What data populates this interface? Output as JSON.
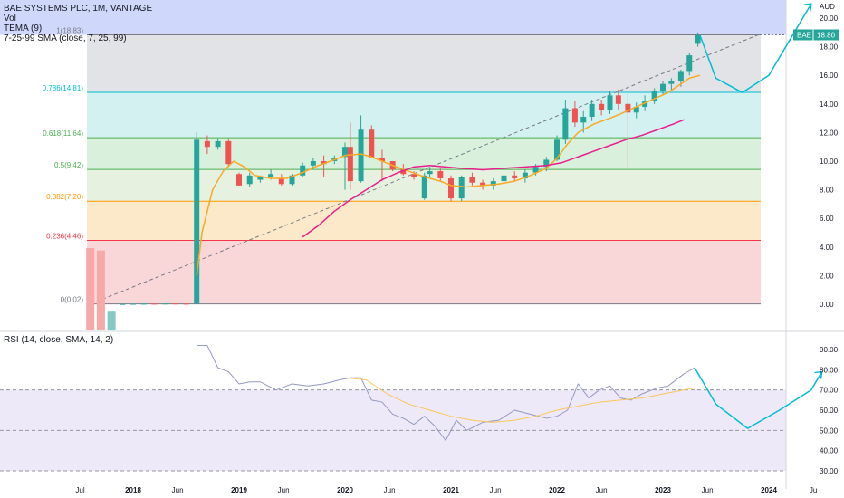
{
  "header": {
    "title": "BAE SYSTEMS PLC, 1M, VANTAGE",
    "vol_label": "Vol",
    "tema_label": "TEMA (9)",
    "sma_label": "7-25-99 SMA (close, 7, 25, 99)"
  },
  "price_axis": {
    "currency": "AUD",
    "ticks": [
      "20.00",
      "18.00",
      "16.00",
      "14.00",
      "12.00",
      "10.00",
      "8.00",
      "6.00",
      "4.00",
      "2.00",
      "0.00"
    ]
  },
  "rsi_panel": {
    "label": "RSI (14, close, SMA, 14, 2)",
    "ticks": [
      "90.00",
      "80.00",
      "70.00",
      "60.00",
      "50.00",
      "40.00",
      "30.00"
    ]
  },
  "time_axis": [
    "Jul",
    "2018",
    "Jun",
    "2019",
    "Jun",
    "2020",
    "Jun",
    "2021",
    "Jun",
    "2022",
    "Jun",
    "2023",
    "Jun",
    "2024",
    "Ju"
  ],
  "symbol_badge": {
    "symbol": "BAE",
    "price": "18.80"
  },
  "fib_levels": [
    {
      "label": "1(18.83)",
      "value": 18.83,
      "color": "#787b86"
    },
    {
      "label": "0.786(14.81)",
      "value": 14.81,
      "color": "#00bcd4"
    },
    {
      "label": "0.618(11.64)",
      "value": 11.64,
      "color": "#4caf50"
    },
    {
      "label": "0.5(9.42)",
      "value": 9.42,
      "color": "#4caf50"
    },
    {
      "label": "0.382(7.20)",
      "value": 7.2,
      "color": "#ff9800"
    },
    {
      "label": "0.236(4.46)",
      "value": 4.46,
      "color": "#f23645"
    },
    {
      "label": "0(0.02)",
      "value": 0.02,
      "color": "#787b86"
    }
  ],
  "colors": {
    "up": "#26a69a",
    "down": "#ef5350",
    "tema": "#f9a825",
    "sma": "#e91e8c",
    "projection": "#00bcd4",
    "rsi": "#9598c2",
    "rsi_sma": "#f9c75a"
  },
  "chart_data": {
    "type": "candlestick",
    "title": "BAE SYSTEMS PLC, 1M, VANTAGE",
    "ylim": [
      -1.5,
      21
    ],
    "rsi_ylim": [
      25,
      95
    ],
    "candles": [
      {
        "t": 2017.9,
        "o": 0.02,
        "h": 0.03,
        "l": 0.01,
        "c": 0.02
      },
      {
        "t": 2018.0,
        "o": 0.02,
        "h": 0.04,
        "l": 0.01,
        "c": 0.03
      },
      {
        "t": 2018.1,
        "o": 0.03,
        "h": 0.05,
        "l": 0.02,
        "c": 0.04
      },
      {
        "t": 2018.2,
        "o": 0.04,
        "h": 0.05,
        "l": 0.02,
        "c": 0.03
      },
      {
        "t": 2018.3,
        "o": 0.03,
        "h": 0.06,
        "l": 0.02,
        "c": 0.05
      },
      {
        "t": 2018.4,
        "o": 0.05,
        "h": 0.06,
        "l": 0.03,
        "c": 0.04
      },
      {
        "t": 2018.5,
        "o": 0.04,
        "h": 0.05,
        "l": 0.02,
        "c": 0.03
      },
      {
        "t": 2018.6,
        "o": 0.03,
        "h": 12.0,
        "l": 0.02,
        "c": 11.5
      },
      {
        "t": 2018.7,
        "o": 11.4,
        "h": 11.8,
        "l": 10.5,
        "c": 11.0
      },
      {
        "t": 2018.8,
        "o": 11.0,
        "h": 11.6,
        "l": 10.8,
        "c": 11.4
      },
      {
        "t": 2018.9,
        "o": 11.4,
        "h": 11.6,
        "l": 9.6,
        "c": 9.8
      },
      {
        "t": 2019.0,
        "o": 9.1,
        "h": 9.2,
        "l": 8.3,
        "c": 8.3
      },
      {
        "t": 2019.1,
        "o": 8.4,
        "h": 9.2,
        "l": 8.2,
        "c": 9.0
      },
      {
        "t": 2019.2,
        "o": 8.7,
        "h": 9.0,
        "l": 8.5,
        "c": 8.9
      },
      {
        "t": 2019.3,
        "o": 8.9,
        "h": 9.4,
        "l": 8.7,
        "c": 9.1
      },
      {
        "t": 2019.4,
        "o": 8.8,
        "h": 9.1,
        "l": 8.3,
        "c": 8.4
      },
      {
        "t": 2019.5,
        "o": 8.4,
        "h": 9.1,
        "l": 8.3,
        "c": 9.0
      },
      {
        "t": 2019.6,
        "o": 9.0,
        "h": 9.9,
        "l": 8.9,
        "c": 9.7
      },
      {
        "t": 2019.7,
        "o": 9.7,
        "h": 10.2,
        "l": 9.4,
        "c": 10.0
      },
      {
        "t": 2019.8,
        "o": 10.0,
        "h": 10.4,
        "l": 8.9,
        "c": 9.8
      },
      {
        "t": 2019.9,
        "o": 10.0,
        "h": 10.4,
        "l": 9.8,
        "c": 10.2
      },
      {
        "t": 2020.0,
        "o": 10.3,
        "h": 11.3,
        "l": 8.0,
        "c": 11.0
      },
      {
        "t": 2020.05,
        "o": 11.0,
        "h": 12.7,
        "l": 8.0,
        "c": 8.6
      },
      {
        "t": 2020.15,
        "o": 8.6,
        "h": 13.2,
        "l": 8.5,
        "c": 12.2
      },
      {
        "t": 2020.25,
        "o": 12.2,
        "h": 12.5,
        "l": 10.2,
        "c": 10.2
      },
      {
        "t": 2020.35,
        "o": 10.2,
        "h": 10.8,
        "l": 8.6,
        "c": 10.0
      },
      {
        "t": 2020.45,
        "o": 10.0,
        "h": 10.0,
        "l": 9.3,
        "c": 9.4
      },
      {
        "t": 2020.55,
        "o": 9.4,
        "h": 9.8,
        "l": 9.0,
        "c": 9.1
      },
      {
        "t": 2020.65,
        "o": 9.1,
        "h": 9.3,
        "l": 8.7,
        "c": 8.9
      },
      {
        "t": 2020.75,
        "o": 7.4,
        "h": 9.2,
        "l": 7.3,
        "c": 9.0
      },
      {
        "t": 2020.8,
        "o": 9.1,
        "h": 9.6,
        "l": 8.9,
        "c": 9.3
      },
      {
        "t": 2020.9,
        "o": 9.3,
        "h": 9.5,
        "l": 8.6,
        "c": 8.8
      },
      {
        "t": 2021.0,
        "o": 8.8,
        "h": 9.0,
        "l": 7.2,
        "c": 7.4
      },
      {
        "t": 2021.1,
        "o": 7.4,
        "h": 9.0,
        "l": 7.2,
        "c": 8.9
      },
      {
        "t": 2021.2,
        "o": 8.9,
        "h": 9.2,
        "l": 8.3,
        "c": 8.5
      },
      {
        "t": 2021.3,
        "o": 8.5,
        "h": 8.7,
        "l": 8.0,
        "c": 8.3
      },
      {
        "t": 2021.4,
        "o": 8.3,
        "h": 8.8,
        "l": 8.0,
        "c": 8.6
      },
      {
        "t": 2021.5,
        "o": 8.6,
        "h": 9.2,
        "l": 8.3,
        "c": 9.0
      },
      {
        "t": 2021.6,
        "o": 9.0,
        "h": 9.3,
        "l": 8.6,
        "c": 8.8
      },
      {
        "t": 2021.7,
        "o": 8.8,
        "h": 9.4,
        "l": 8.5,
        "c": 9.2
      },
      {
        "t": 2021.8,
        "o": 9.2,
        "h": 9.8,
        "l": 9.0,
        "c": 9.6
      },
      {
        "t": 2021.9,
        "o": 9.6,
        "h": 10.3,
        "l": 9.3,
        "c": 10.1
      },
      {
        "t": 2022.0,
        "o": 10.1,
        "h": 11.8,
        "l": 10.0,
        "c": 11.5
      },
      {
        "t": 2022.08,
        "o": 11.5,
        "h": 14.3,
        "l": 11.2,
        "c": 13.7
      },
      {
        "t": 2022.17,
        "o": 13.7,
        "h": 14.2,
        "l": 12.4,
        "c": 12.7
      },
      {
        "t": 2022.25,
        "o": 12.7,
        "h": 13.5,
        "l": 12.0,
        "c": 13.1
      },
      {
        "t": 2022.33,
        "o": 13.1,
        "h": 14.3,
        "l": 12.8,
        "c": 14.0
      },
      {
        "t": 2022.42,
        "o": 14.0,
        "h": 14.3,
        "l": 13.2,
        "c": 13.6
      },
      {
        "t": 2022.5,
        "o": 13.6,
        "h": 14.9,
        "l": 13.3,
        "c": 14.6
      },
      {
        "t": 2022.58,
        "o": 14.6,
        "h": 15.0,
        "l": 13.6,
        "c": 14.0
      },
      {
        "t": 2022.67,
        "o": 14.0,
        "h": 14.7,
        "l": 9.6,
        "c": 13.4
      },
      {
        "t": 2022.75,
        "o": 13.4,
        "h": 14.1,
        "l": 13.0,
        "c": 13.8
      },
      {
        "t": 2022.83,
        "o": 13.8,
        "h": 14.6,
        "l": 13.5,
        "c": 14.2
      },
      {
        "t": 2022.92,
        "o": 14.2,
        "h": 15.1,
        "l": 14.0,
        "c": 14.9
      },
      {
        "t": 2023.0,
        "o": 14.9,
        "h": 15.6,
        "l": 14.6,
        "c": 15.4
      },
      {
        "t": 2023.08,
        "o": 15.4,
        "h": 15.8,
        "l": 15.0,
        "c": 15.6
      },
      {
        "t": 2023.17,
        "o": 15.6,
        "h": 16.4,
        "l": 15.2,
        "c": 16.3
      },
      {
        "t": 2023.25,
        "o": 16.3,
        "h": 17.6,
        "l": 16.0,
        "c": 17.4
      },
      {
        "t": 2023.33,
        "o": 18.2,
        "h": 19.0,
        "l": 18.0,
        "c": 18.8
      }
    ],
    "tema": [
      [
        2018.6,
        2.0
      ],
      [
        2018.65,
        5.0
      ],
      [
        2018.75,
        8.0
      ],
      [
        2018.85,
        9.3
      ],
      [
        2018.95,
        10.0
      ],
      [
        2019.05,
        9.6
      ],
      [
        2019.15,
        9.0
      ],
      [
        2019.3,
        8.8
      ],
      [
        2019.45,
        8.8
      ],
      [
        2019.6,
        9.2
      ],
      [
        2019.75,
        9.7
      ],
      [
        2019.9,
        10.1
      ],
      [
        2020.0,
        10.4
      ],
      [
        2020.15,
        10.5
      ],
      [
        2020.25,
        10.3
      ],
      [
        2020.35,
        10.0
      ],
      [
        2020.45,
        9.7
      ],
      [
        2020.6,
        9.3
      ],
      [
        2020.75,
        8.9
      ],
      [
        2020.9,
        8.6
      ],
      [
        2021.0,
        8.3
      ],
      [
        2021.15,
        8.2
      ],
      [
        2021.3,
        8.3
      ],
      [
        2021.45,
        8.4
      ],
      [
        2021.6,
        8.6
      ],
      [
        2021.75,
        9.0
      ],
      [
        2021.9,
        9.5
      ],
      [
        2022.0,
        10.2
      ],
      [
        2022.1,
        11.2
      ],
      [
        2022.2,
        12.0
      ],
      [
        2022.35,
        12.6
      ],
      [
        2022.5,
        13.0
      ],
      [
        2022.6,
        13.3
      ],
      [
        2022.75,
        13.8
      ],
      [
        2022.9,
        14.3
      ],
      [
        2023.05,
        14.8
      ],
      [
        2023.15,
        15.3
      ],
      [
        2023.25,
        15.8
      ],
      [
        2023.35,
        16.0
      ]
    ],
    "sma": [
      [
        2019.6,
        4.7
      ],
      [
        2019.75,
        5.5
      ],
      [
        2019.9,
        6.5
      ],
      [
        2020.05,
        7.3
      ],
      [
        2020.2,
        8.0
      ],
      [
        2020.35,
        8.7
      ],
      [
        2020.5,
        9.2
      ],
      [
        2020.65,
        9.6
      ],
      [
        2020.8,
        9.7
      ],
      [
        2020.95,
        9.6
      ],
      [
        2021.1,
        9.5
      ],
      [
        2021.3,
        9.4
      ],
      [
        2021.5,
        9.5
      ],
      [
        2021.7,
        9.6
      ],
      [
        2021.9,
        9.7
      ],
      [
        2022.05,
        9.9
      ],
      [
        2022.2,
        10.3
      ],
      [
        2022.35,
        10.7
      ],
      [
        2022.5,
        11.1
      ],
      [
        2022.65,
        11.5
      ],
      [
        2022.8,
        11.8
      ],
      [
        2022.95,
        12.2
      ],
      [
        2023.1,
        12.6
      ],
      [
        2023.2,
        12.9
      ]
    ],
    "projection": [
      [
        2023.35,
        18.8
      ],
      [
        2023.5,
        15.8
      ],
      [
        2023.75,
        14.8
      ],
      [
        2024.0,
        16.0
      ],
      [
        2024.4,
        21.0
      ]
    ],
    "rsi": [
      [
        2018.6,
        92
      ],
      [
        2018.7,
        92
      ],
      [
        2018.8,
        81
      ],
      [
        2018.9,
        79
      ],
      [
        2019.0,
        73
      ],
      [
        2019.1,
        74
      ],
      [
        2019.2,
        74
      ],
      [
        2019.35,
        70
      ],
      [
        2019.5,
        73
      ],
      [
        2019.65,
        72
      ],
      [
        2019.8,
        73
      ],
      [
        2019.95,
        75
      ],
      [
        2020.05,
        76
      ],
      [
        2020.15,
        76
      ],
      [
        2020.25,
        65
      ],
      [
        2020.35,
        64
      ],
      [
        2020.45,
        58
      ],
      [
        2020.55,
        56
      ],
      [
        2020.65,
        53
      ],
      [
        2020.75,
        57
      ],
      [
        2020.85,
        52
      ],
      [
        2020.95,
        45
      ],
      [
        2021.05,
        55
      ],
      [
        2021.15,
        50
      ],
      [
        2021.3,
        54
      ],
      [
        2021.45,
        55
      ],
      [
        2021.6,
        60
      ],
      [
        2021.75,
        58
      ],
      [
        2021.9,
        56
      ],
      [
        2022.0,
        57
      ],
      [
        2022.1,
        60
      ],
      [
        2022.2,
        73
      ],
      [
        2022.3,
        66
      ],
      [
        2022.4,
        70
      ],
      [
        2022.5,
        72
      ],
      [
        2022.6,
        66
      ],
      [
        2022.7,
        65
      ],
      [
        2022.8,
        68
      ],
      [
        2022.95,
        71
      ],
      [
        2023.05,
        72
      ],
      [
        2023.2,
        78
      ],
      [
        2023.3,
        81
      ]
    ],
    "rsi_sma": [
      [
        2020.0,
        76
      ],
      [
        2020.2,
        75
      ],
      [
        2020.4,
        68
      ],
      [
        2020.6,
        63
      ],
      [
        2020.8,
        60
      ],
      [
        2021.0,
        57
      ],
      [
        2021.2,
        55
      ],
      [
        2021.4,
        54
      ],
      [
        2021.6,
        55
      ],
      [
        2021.8,
        57
      ],
      [
        2022.0,
        60
      ],
      [
        2022.2,
        62
      ],
      [
        2022.4,
        64
      ],
      [
        2022.6,
        65
      ],
      [
        2022.8,
        66
      ],
      [
        2023.0,
        68
      ],
      [
        2023.2,
        70
      ],
      [
        2023.3,
        71
      ]
    ],
    "rsi_projection": [
      [
        2023.3,
        81
      ],
      [
        2023.5,
        63
      ],
      [
        2023.8,
        51
      ],
      [
        2024.1,
        60
      ],
      [
        2024.4,
        70
      ],
      [
        2024.5,
        79
      ]
    ],
    "volume": [
      {
        "t": 2017.6,
        "v": 1.0,
        "up": false
      },
      {
        "t": 2017.7,
        "v": 0.97,
        "up": false
      },
      {
        "t": 2017.8,
        "v": 0.22,
        "up": true
      }
    ]
  }
}
